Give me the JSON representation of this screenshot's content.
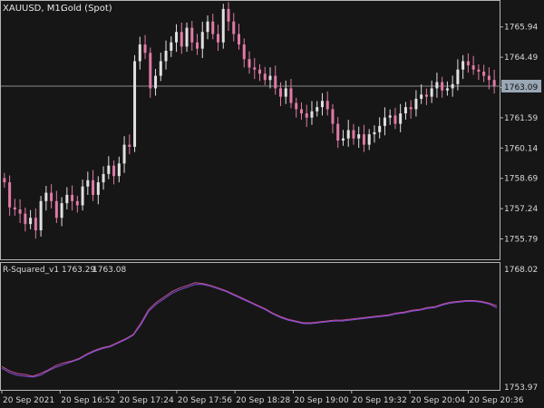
{
  "header": {
    "symbol": "XAUUSD, M1:",
    "instrument": "Gold (Spot)"
  },
  "current_price": "1763.09",
  "indicator": {
    "name": "R-Squared_v1",
    "value1": "1763.29",
    "value2": "1763.08"
  },
  "colors": {
    "background": "#161616",
    "grid_border": "#b5b5b5",
    "bull_candle": "#e0e0e0",
    "bear_candle": "#e07aa6",
    "line_main": "#c9509a",
    "line_signal": "#7b4fd8",
    "price_tag_bg": "#9aa7b5"
  },
  "chart_data": [
    {
      "type": "candlestick",
      "title": "XAUUSD, M1: Gold (Spot)",
      "y_ticks": [
        "1765.94",
        "1764.49",
        "1763.04",
        "1761.59",
        "1760.14",
        "1758.69",
        "1757.24",
        "1755.79"
      ],
      "ylim": [
        1754.9,
        1767.1
      ],
      "x_ticks": [
        "20 Sep 2021",
        "20 Sep 16:52",
        "20 Sep 17:24",
        "20 Sep 17:56",
        "20 Sep 18:28",
        "20 Sep 19:00",
        "20 Sep 19:32",
        "20 Sep 20:04",
        "20 Sep 20:36"
      ],
      "close": [
        1758.5,
        1757.3,
        1757.2,
        1757.0,
        1756.5,
        1756.8,
        1756.2,
        1757.6,
        1758.0,
        1757.6,
        1756.8,
        1757.5,
        1757.9,
        1757.6,
        1757.4,
        1758.3,
        1758.6,
        1757.9,
        1758.5,
        1758.9,
        1759.3,
        1758.8,
        1759.4,
        1760.3,
        1760.2,
        1764.3,
        1765.1,
        1764.7,
        1763.0,
        1763.6,
        1764.3,
        1764.8,
        1765.2,
        1765.7,
        1765.0,
        1765.9,
        1765.2,
        1764.9,
        1765.7,
        1766.2,
        1765.6,
        1765.2,
        1766.8,
        1766.2,
        1765.6,
        1765.1,
        1764.4,
        1764.0,
        1763.9,
        1763.7,
        1763.4,
        1763.6,
        1763.0,
        1762.6,
        1763.0,
        1762.3,
        1762.0,
        1761.8,
        1761.6,
        1761.9,
        1762.1,
        1762.4,
        1762.0,
        1761.3,
        1760.5,
        1760.6,
        1761.0,
        1760.6,
        1760.8,
        1760.3,
        1760.8,
        1760.9,
        1761.2,
        1761.6,
        1761.7,
        1761.3,
        1761.8,
        1762.1,
        1762.0,
        1762.5,
        1762.7,
        1762.6,
        1763.0,
        1763.3,
        1762.9,
        1763.0,
        1763.2,
        1763.9,
        1764.3,
        1764.1,
        1763.9,
        1763.8,
        1763.6,
        1763.4,
        1763.1
      ]
    },
    {
      "type": "line",
      "title": "R-Squared_v1 1763.29 1763.08",
      "y_ticks": [
        "1768.02",
        "1753.97"
      ],
      "ylim": [
        1753.97,
        1768.02
      ],
      "series": [
        {
          "values": [
            1756.5,
            1756.0,
            1755.7,
            1755.6,
            1755.4,
            1755.7,
            1756.1,
            1756.6,
            1756.9,
            1757.1,
            1757.4,
            1757.9,
            1758.3,
            1758.6,
            1758.8,
            1759.2,
            1759.6,
            1760.1,
            1761.4,
            1762.9,
            1763.7,
            1764.3,
            1764.9,
            1765.3,
            1765.6,
            1765.9,
            1765.8,
            1765.6,
            1765.3,
            1765.0,
            1764.6,
            1764.2,
            1763.8,
            1763.4,
            1763.0,
            1762.5,
            1762.1,
            1761.8,
            1761.6,
            1761.4,
            1761.4,
            1761.5,
            1761.6,
            1761.7,
            1761.7,
            1761.8,
            1761.9,
            1762.0,
            1762.1,
            1762.2,
            1762.3,
            1762.5,
            1762.6,
            1762.8,
            1762.9,
            1763.1,
            1763.2,
            1763.5,
            1763.7,
            1763.8,
            1763.9,
            1763.9,
            1763.8,
            1763.6,
            1763.3
          ]
        },
        {
          "values": [
            1756.3,
            1755.8,
            1755.5,
            1755.4,
            1755.3,
            1755.5,
            1756.0,
            1756.4,
            1756.7,
            1757.0,
            1757.3,
            1757.8,
            1758.2,
            1758.5,
            1758.7,
            1759.1,
            1759.5,
            1760.0,
            1761.2,
            1762.7,
            1763.5,
            1764.1,
            1764.7,
            1765.1,
            1765.4,
            1765.7,
            1765.7,
            1765.5,
            1765.2,
            1764.9,
            1764.5,
            1764.1,
            1763.7,
            1763.3,
            1762.9,
            1762.4,
            1762.0,
            1761.7,
            1761.5,
            1761.3,
            1761.3,
            1761.4,
            1761.5,
            1761.6,
            1761.6,
            1761.7,
            1761.8,
            1761.9,
            1762.0,
            1762.1,
            1762.2,
            1762.4,
            1762.5,
            1762.7,
            1762.8,
            1763.0,
            1763.1,
            1763.4,
            1763.6,
            1763.7,
            1763.8,
            1763.8,
            1763.7,
            1763.5,
            1763.08
          ]
        }
      ]
    }
  ]
}
